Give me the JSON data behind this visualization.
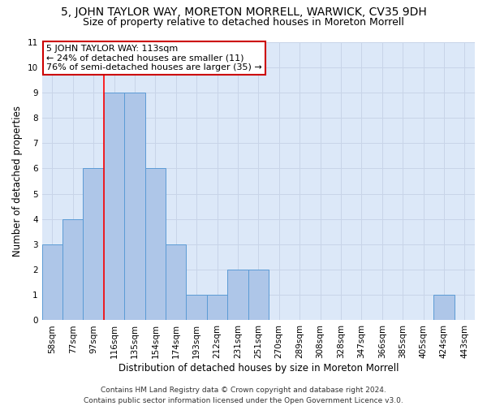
{
  "title_line1": "5, JOHN TAYLOR WAY, MORETON MORRELL, WARWICK, CV35 9DH",
  "title_line2": "Size of property relative to detached houses in Moreton Morrell",
  "xlabel": "Distribution of detached houses by size in Moreton Morrell",
  "ylabel": "Number of detached properties",
  "annotation_line1": "5 JOHN TAYLOR WAY: 113sqm",
  "annotation_line2": "← 24% of detached houses are smaller (11)",
  "annotation_line3": "76% of semi-detached houses are larger (35) →",
  "footer_line1": "Contains HM Land Registry data © Crown copyright and database right 2024.",
  "footer_line2": "Contains public sector information licensed under the Open Government Licence v3.0.",
  "bar_labels": [
    "58sqm",
    "77sqm",
    "97sqm",
    "116sqm",
    "135sqm",
    "154sqm",
    "174sqm",
    "193sqm",
    "212sqm",
    "231sqm",
    "251sqm",
    "270sqm",
    "289sqm",
    "308sqm",
    "328sqm",
    "347sqm",
    "366sqm",
    "385sqm",
    "405sqm",
    "424sqm",
    "443sqm"
  ],
  "bar_values": [
    3,
    4,
    6,
    9,
    9,
    6,
    3,
    1,
    1,
    2,
    2,
    0,
    0,
    0,
    0,
    0,
    0,
    0,
    0,
    1,
    0
  ],
  "bar_color": "#aec6e8",
  "bar_edge_color": "#5b9bd5",
  "ref_line_x": 2.5,
  "ylim_max": 11,
  "grid_color": "#c8d4e8",
  "bg_color": "#dce8f8",
  "annotation_box_facecolor": "#ffffff",
  "annotation_box_edgecolor": "#cc0000",
  "title_fontsize": 10,
  "subtitle_fontsize": 9,
  "axis_label_fontsize": 8.5,
  "tick_fontsize": 7.5,
  "annotation_fontsize": 8,
  "footer_fontsize": 6.5
}
